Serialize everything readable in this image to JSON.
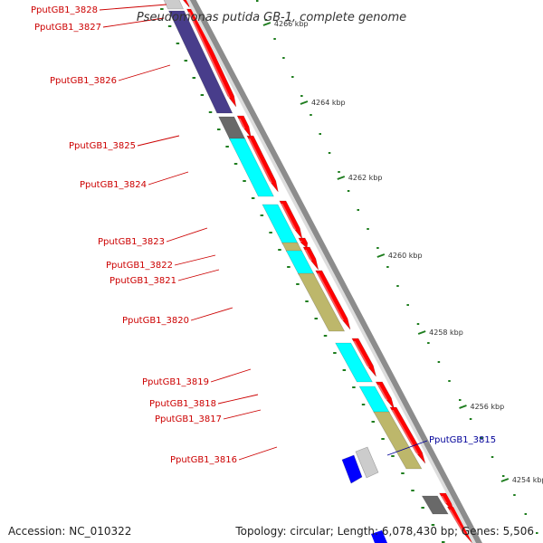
{
  "title": "Pseudomonas putida GB-1, complete genome",
  "footer": {
    "accession": "Accession: NC_010322",
    "topology": "Topology: circular; Length: 6,078,430 bp; Genes: 5,506"
  },
  "colors": {
    "backbone": "#8c8c8c",
    "forward_cds": "#ff0000",
    "reverse_cds": "#0000ff",
    "tick": "#1e7d1e",
    "label_red": "#cc0000",
    "label_blue": "#000099",
    "cog_cyan": "#00ffff",
    "cog_khaki": "#bdb76b",
    "cog_purple": "#483d8b",
    "cog_gray": "#696969",
    "cog_light": "#cccccc"
  },
  "ticks": [
    "4264 kbp",
    "4262 kbp",
    "4260 kbp",
    "4258 kbp",
    "4256 kbp",
    "4254 kbp",
    "4266 kbp"
  ],
  "genes": [
    {
      "name": "PputGB1_3828",
      "color": "label_red"
    },
    {
      "name": "PputGB1_3827",
      "color": "label_red"
    },
    {
      "name": "PputGB1_3826",
      "color": "label_red"
    },
    {
      "name": "PputGB1_3825",
      "color": "label_red"
    },
    {
      "name": "PputGB1_3824",
      "color": "label_red"
    },
    {
      "name": "PputGB1_3823",
      "color": "label_red"
    },
    {
      "name": "PputGB1_3822",
      "color": "label_red"
    },
    {
      "name": "PputGB1_3821",
      "color": "label_red"
    },
    {
      "name": "PputGB1_3820",
      "color": "label_red"
    },
    {
      "name": "PputGB1_3819",
      "color": "label_red"
    },
    {
      "name": "PputGB1_3818",
      "color": "label_red"
    },
    {
      "name": "PputGB1_3817",
      "color": "label_red"
    },
    {
      "name": "PputGB1_3816",
      "color": "label_red"
    },
    {
      "name": "PputGB1_3815",
      "color": "label_blue"
    }
  ]
}
